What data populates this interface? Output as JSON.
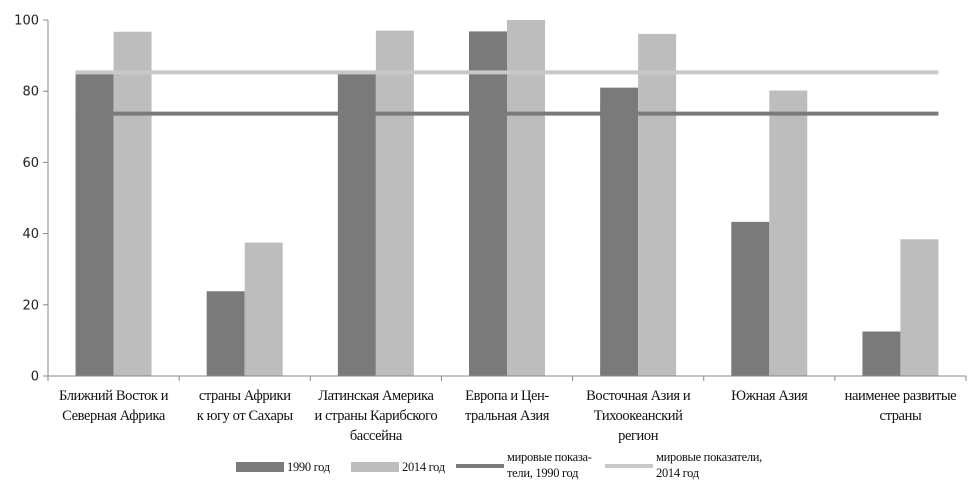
{
  "chart_data": {
    "type": "bar",
    "categories": [
      [
        "Ближний Восток и",
        "Северная Африка"
      ],
      [
        "страны Африки",
        "к югу от Сахары"
      ],
      [
        "Латинская Америка",
        "и страны Карибского",
        "бассейна"
      ],
      [
        "Европа и Цен-",
        "тральная Азия"
      ],
      [
        "Восточная Азия и",
        "Тихоокеанский",
        "регион"
      ],
      [
        "Южная Азия"
      ],
      [
        "наименее развитые",
        "страны"
      ]
    ],
    "series": [
      {
        "name": "1990 год",
        "values": [
          85.5,
          23.8,
          84.8,
          96.8,
          81.0,
          43.3,
          12.5
        ],
        "color": "#7a7a7a"
      },
      {
        "name": "2014 год",
        "values": [
          96.7,
          37.5,
          97.0,
          100.0,
          96.1,
          80.2,
          38.4
        ],
        "color": "#bdbdbd"
      }
    ],
    "reference_lines": [
      {
        "name": [
          "мировые показа-",
          "тели, 1990 год"
        ],
        "value": 73.7,
        "color": "#7a7a7a"
      },
      {
        "name": [
          "мировые показатели,",
          "2014 год"
        ],
        "value": 85.3,
        "color": "#c8c8c8"
      }
    ],
    "ylim": [
      0,
      100
    ],
    "yticks": [
      "0",
      "20",
      "40",
      "60",
      "80",
      "100"
    ],
    "ytick_values": [
      0,
      20,
      40,
      60,
      80,
      100
    ],
    "grid": false,
    "legend_position": "bottom"
  }
}
